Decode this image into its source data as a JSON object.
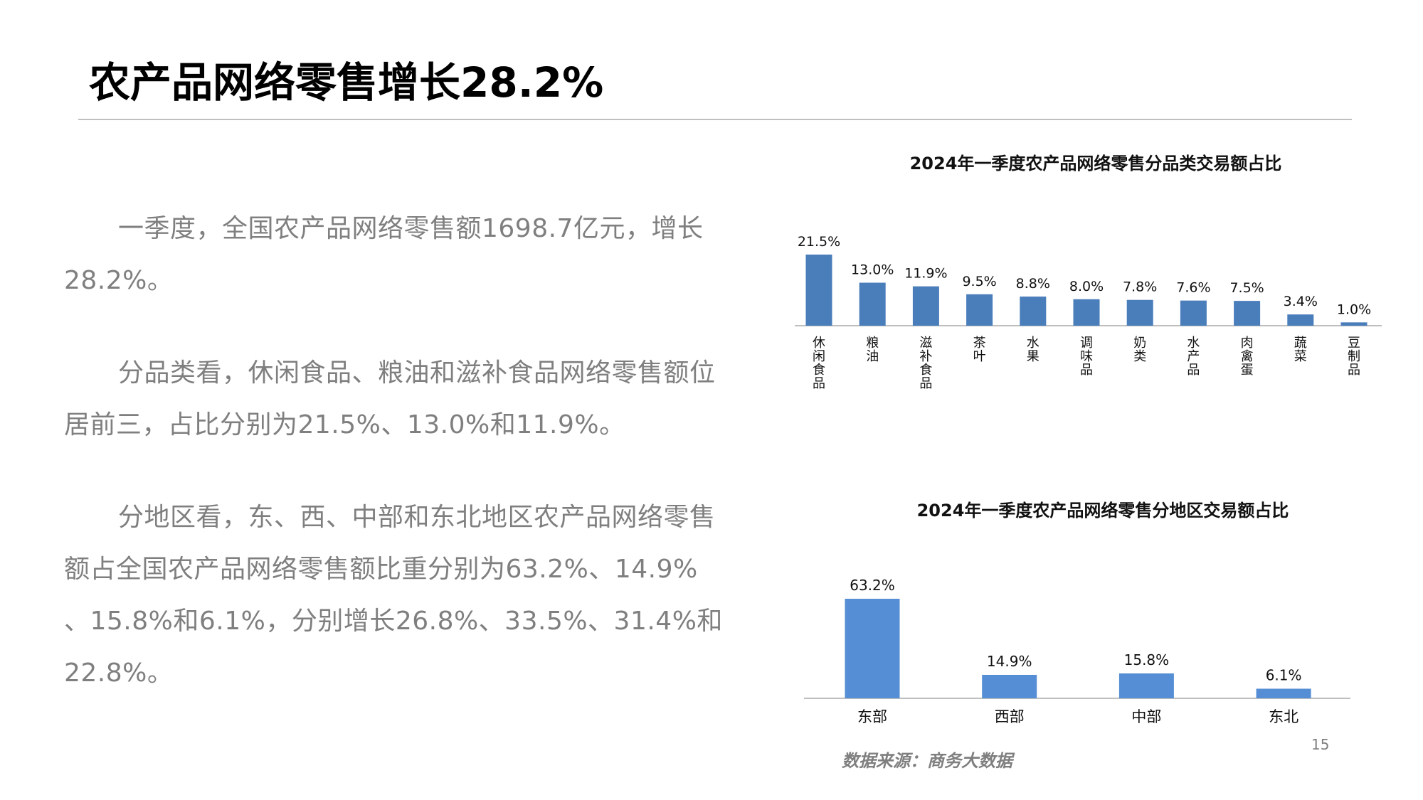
{
  "title": "农产品网络零售增长28.2%",
  "paragraphs": [
    "一季度，全国农产品网络零售额1698.7亿元，增长28.2%。",
    "分品类看，休闲食品、粮油和滋补食品网络零售额位居前三，占比分别为21.5%、13.0%和11.9%。",
    "分地区看，东、西、中部和东北地区农产品网络零售额占全国农产品网络零售额比重分别为63.2%、14.9% 、15.8%和6.1%，分别增长26.8%、33.5%、31.4%和22.8%。"
  ],
  "source": "数据来源：商务大数据",
  "page_number": "15",
  "chart_data": [
    {
      "type": "bar",
      "title": "2024年一季度农产品网络零售分品类交易额占比",
      "categories": [
        "休闲食品",
        "粮油",
        "滋补食品",
        "茶叶",
        "水果",
        "调味品",
        "奶类",
        "水产品",
        "肉禽蛋",
        "蔬菜",
        "豆制品"
      ],
      "values": [
        21.5,
        13.0,
        11.9,
        9.5,
        8.8,
        8.0,
        7.8,
        7.6,
        7.5,
        3.4,
        1.0
      ],
      "labels": [
        "21.5%",
        "13.0%",
        "11.9%",
        "9.5%",
        "8.8%",
        "8.0%",
        "7.8%",
        "7.6%",
        "7.5%",
        "3.4%",
        "1.0%"
      ],
      "ylim": [
        0,
        21.5
      ],
      "grid": false,
      "color": "#4a7ebb"
    },
    {
      "type": "bar",
      "title": "2024年一季度农产品网络零售分地区交易额占比",
      "categories": [
        "东部",
        "西部",
        "中部",
        "东北"
      ],
      "values": [
        63.2,
        14.9,
        15.8,
        6.1
      ],
      "labels": [
        "63.2%",
        "14.9%",
        "15.8%",
        "6.1%"
      ],
      "ylim": [
        0,
        63.2
      ],
      "grid": false,
      "color": "#558ed5"
    }
  ]
}
